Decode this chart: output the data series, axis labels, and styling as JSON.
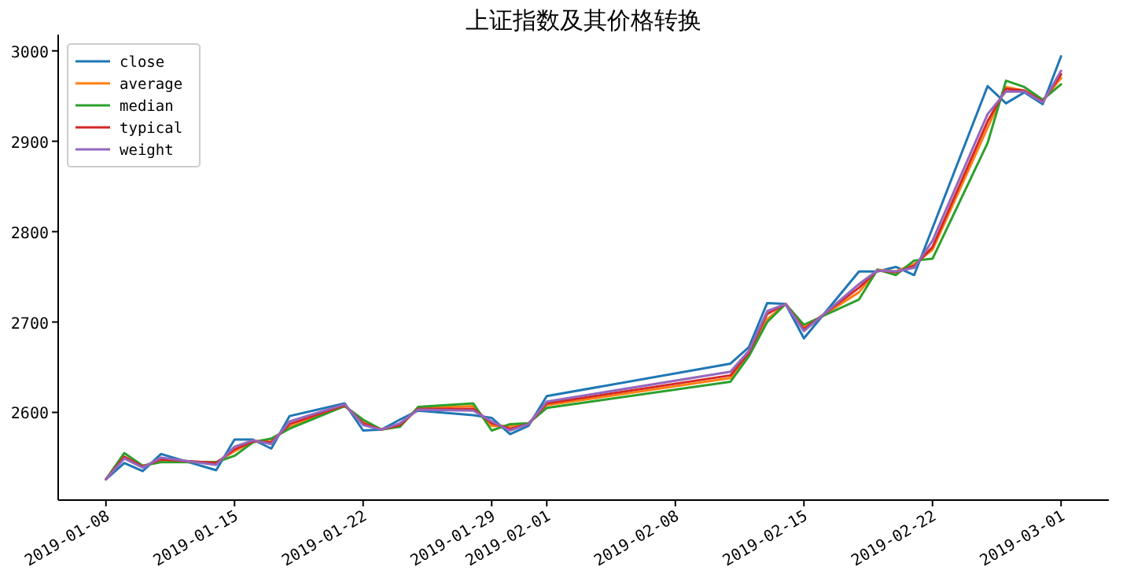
{
  "chart_data": {
    "type": "line",
    "title": "上证指数及其价格转换",
    "x": [
      "2019-01-08",
      "2019-01-09",
      "2019-01-10",
      "2019-01-11",
      "2019-01-14",
      "2019-01-15",
      "2019-01-16",
      "2019-01-17",
      "2019-01-18",
      "2019-01-21",
      "2019-01-22",
      "2019-01-23",
      "2019-01-24",
      "2019-01-25",
      "2019-01-28",
      "2019-01-29",
      "2019-01-30",
      "2019-01-31",
      "2019-02-01",
      "2019-02-11",
      "2019-02-12",
      "2019-02-13",
      "2019-02-14",
      "2019-02-15",
      "2019-02-18",
      "2019-02-19",
      "2019-02-20",
      "2019-02-21",
      "2019-02-22",
      "2019-02-25",
      "2019-02-26",
      "2019-02-27",
      "2019-02-28",
      "2019-03-01"
    ],
    "series": [
      {
        "name": "close",
        "color": "#1f77b4",
        "values": [
          2526,
          2544,
          2535,
          2554,
          2536,
          2570,
          2570,
          2560,
          2596,
          2610,
          2580,
          2581,
          2592,
          2602,
          2597,
          2594,
          2576,
          2585,
          2618,
          2654,
          2672,
          2721,
          2720,
          2682,
          2756,
          2756,
          2761,
          2752,
          2804,
          2961,
          2942,
          2954,
          2941,
          2994
        ]
      },
      {
        "name": "average",
        "color": "#ff7f0e",
        "values": [
          null,
          null,
          null,
          2546,
          2545,
          2557,
          2568,
          2570,
          2584,
          2607,
          2590,
          2581,
          2585,
          2605,
          2607,
          2585,
          2585,
          2588,
          2608,
          2638,
          2664,
          2703,
          2720,
          2694,
          2733,
          2758,
          2756,
          2764,
          2780,
          2915,
          2960,
          2956,
          2945,
          2970
        ]
      },
      {
        "name": "median",
        "color": "#2ca02c",
        "values": [
          2526,
          2555,
          2541,
          2545,
          2545,
          2552,
          2567,
          2571,
          2582,
          2607,
          2592,
          2581,
          2584,
          2606,
          2610,
          2580,
          2587,
          2588,
          2605,
          2634,
          2662,
          2700,
          2720,
          2697,
          2725,
          2758,
          2752,
          2768,
          2770,
          2898,
          2967,
          2960,
          2946,
          2963
        ]
      },
      {
        "name": "typical",
        "color": "#d62728",
        "values": [
          2526,
          2551,
          2540,
          2548,
          2544,
          2559,
          2568,
          2567,
          2587,
          2608,
          2588,
          2581,
          2586,
          2604,
          2604,
          2588,
          2582,
          2587,
          2610,
          2641,
          2666,
          2709,
          2720,
          2692,
          2738,
          2757,
          2755,
          2762,
          2783,
          2922,
          2958,
          2956,
          2944,
          2974
        ]
      },
      {
        "name": "weight",
        "color": "#9467bd",
        "values": [
          2526,
          2549,
          2539,
          2550,
          2542,
          2562,
          2569,
          2565,
          2590,
          2609,
          2586,
          2581,
          2588,
          2603,
          2602,
          2590,
          2580,
          2587,
          2612,
          2645,
          2668,
          2712,
          2720,
          2690,
          2742,
          2757,
          2756,
          2760,
          2790,
          2930,
          2955,
          2955,
          2943,
          2978
        ]
      }
    ],
    "xlim": [
      "2019-01-05T09:36",
      "2019-03-03T14:24"
    ],
    "xticks": [
      "2019-01-08",
      "2019-01-15",
      "2019-01-22",
      "2019-01-29",
      "2019-02-01",
      "2019-02-08",
      "2019-02-15",
      "2019-02-22",
      "2019-03-01"
    ],
    "ylim": [
      2503,
      3018
    ],
    "yticks": [
      2600,
      2700,
      2800,
      2900,
      3000
    ],
    "grid": false,
    "legend": "top left"
  }
}
